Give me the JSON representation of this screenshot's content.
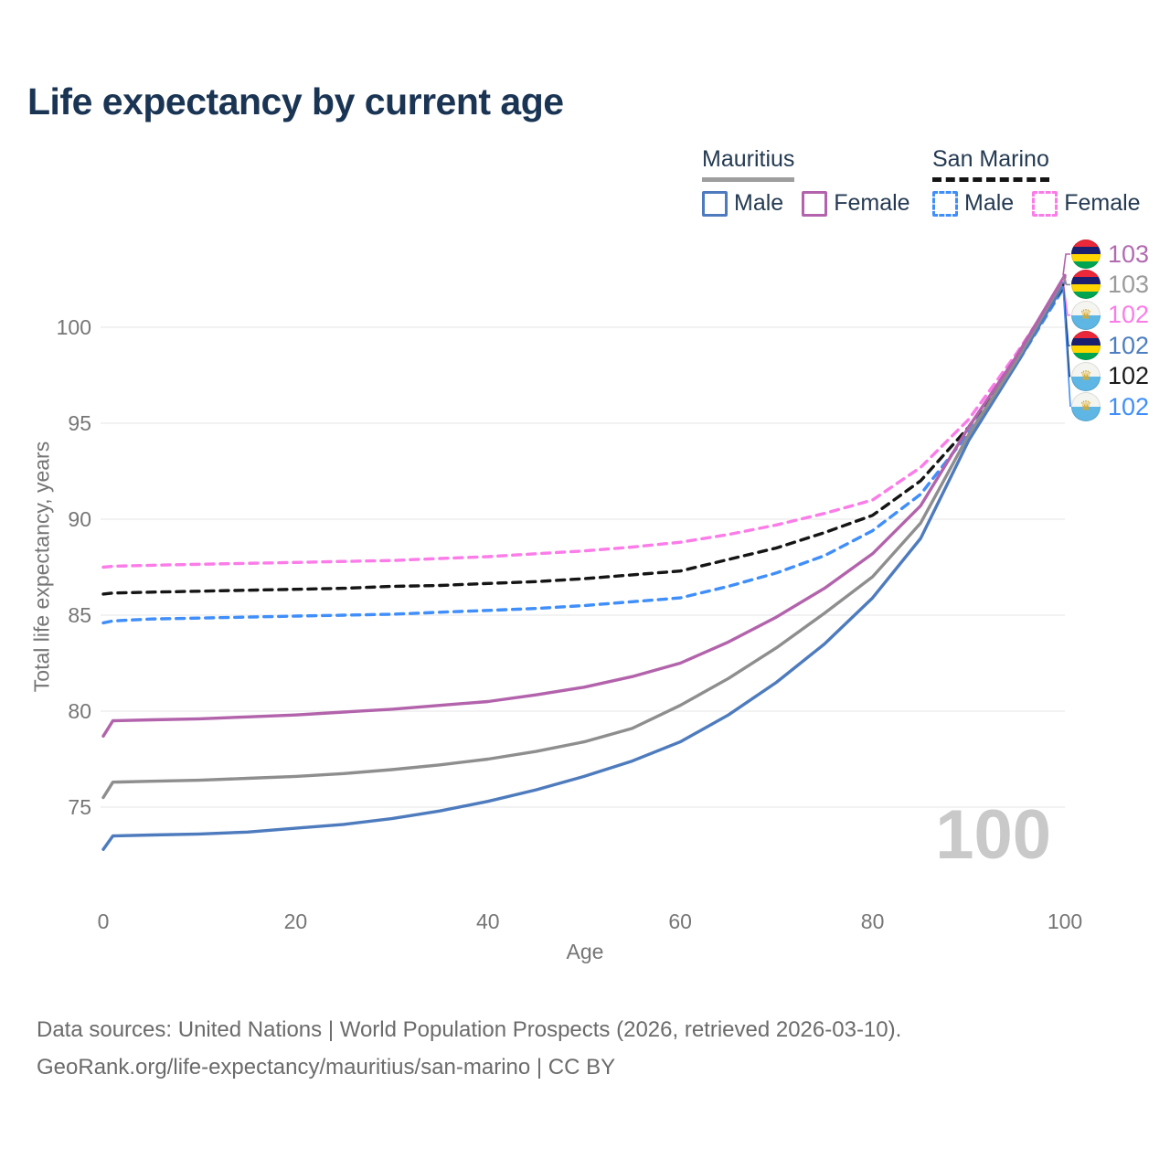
{
  "title": "Life expectancy by current age",
  "watermark": "100",
  "legend": {
    "groups": [
      {
        "name": "Mauritius",
        "line": {
          "color": "#9e9e9e",
          "dashed": false
        },
        "items": [
          {
            "label": "Male",
            "color": "#4d7bbd",
            "dashed": false
          },
          {
            "label": "Female",
            "color": "#b263ab",
            "dashed": false
          }
        ]
      },
      {
        "name": "San Marino",
        "line": {
          "color": "#151515",
          "dashed": true
        },
        "items": [
          {
            "label": "Male",
            "color": "#3f8efa",
            "dashed": true
          },
          {
            "label": "Female",
            "color": "#fb7ce8",
            "dashed": true
          }
        ]
      }
    ]
  },
  "chart_data": {
    "type": "line",
    "title": "Life expectancy by current age",
    "xlabel": "Age",
    "ylabel": "Total life expectancy, years",
    "xlim": [
      0,
      100
    ],
    "ylim": [
      72,
      104
    ],
    "x_ticks": [
      0,
      20,
      40,
      60,
      80,
      100
    ],
    "y_ticks": [
      75,
      80,
      85,
      90,
      95,
      100
    ],
    "grid": "horizontal",
    "legend_position": "top-right",
    "ages": [
      0,
      1,
      5,
      10,
      15,
      20,
      25,
      30,
      35,
      40,
      45,
      50,
      55,
      60,
      65,
      70,
      75,
      80,
      85,
      90,
      95,
      100
    ],
    "series": [
      {
        "id": "san-marino-male",
        "name": "San Marino Male",
        "country": "San Marino",
        "sex": "Male",
        "color": "#3f8efa",
        "dashed": true,
        "values": [
          84.6,
          84.7,
          84.8,
          84.85,
          84.9,
          84.95,
          85.0,
          85.05,
          85.15,
          85.25,
          85.35,
          85.5,
          85.7,
          85.9,
          86.5,
          87.2,
          88.1,
          89.4,
          91.3,
          94.5,
          98.1,
          102.15
        ]
      },
      {
        "id": "san-marino-total",
        "name": "San Marino",
        "country": "San Marino",
        "sex": "Both",
        "color": "#151515",
        "dashed": true,
        "values": [
          86.1,
          86.15,
          86.2,
          86.25,
          86.3,
          86.35,
          86.4,
          86.5,
          86.55,
          86.65,
          86.75,
          86.9,
          87.1,
          87.3,
          87.9,
          88.5,
          89.3,
          90.2,
          92.0,
          94.8,
          98.35,
          102.25
        ]
      },
      {
        "id": "san-marino-female",
        "name": "San Marino Female",
        "country": "San Marino",
        "sex": "Female",
        "color": "#fb7ce8",
        "dashed": true,
        "values": [
          87.5,
          87.55,
          87.6,
          87.65,
          87.7,
          87.75,
          87.8,
          87.85,
          87.95,
          88.05,
          88.2,
          88.35,
          88.55,
          88.8,
          89.2,
          89.7,
          90.3,
          91.0,
          92.7,
          95.2,
          98.65,
          102.45
        ]
      },
      {
        "id": "mauritius-male",
        "name": "Mauritius Male",
        "country": "Mauritius",
        "sex": "Male",
        "color": "#4d7bbd",
        "dashed": false,
        "values": [
          72.8,
          73.5,
          73.55,
          73.6,
          73.7,
          73.9,
          74.1,
          74.4,
          74.8,
          75.3,
          75.9,
          76.6,
          77.4,
          78.4,
          79.8,
          81.5,
          83.5,
          85.9,
          89.0,
          94.1,
          98.1,
          102.35
        ]
      },
      {
        "id": "mauritius-total",
        "name": "Mauritius",
        "country": "Mauritius",
        "sex": "Both",
        "color": "#8e8e8e",
        "dashed": false,
        "values": [
          75.5,
          76.3,
          76.35,
          76.4,
          76.5,
          76.6,
          76.75,
          76.95,
          77.2,
          77.5,
          77.9,
          78.4,
          79.1,
          80.3,
          81.7,
          83.3,
          85.1,
          87.0,
          89.8,
          94.4,
          98.3,
          102.6
        ]
      },
      {
        "id": "mauritius-female",
        "name": "Mauritius Female",
        "country": "Mauritius",
        "sex": "Female",
        "color": "#b263ab",
        "dashed": false,
        "values": [
          78.7,
          79.5,
          79.55,
          79.6,
          79.7,
          79.8,
          79.95,
          80.1,
          80.3,
          80.5,
          80.85,
          81.25,
          81.8,
          82.5,
          83.6,
          84.9,
          86.4,
          88.2,
          90.7,
          94.8,
          98.5,
          102.7
        ]
      }
    ]
  },
  "end_labels": [
    {
      "series": "mauritius-female",
      "flag": "mauritius",
      "value": "103",
      "color": "#b16bb0"
    },
    {
      "series": "mauritius-total",
      "flag": "mauritius",
      "value": "103",
      "color": "#9b9b9b"
    },
    {
      "series": "san-marino-female",
      "flag": "san-marino",
      "value": "102",
      "color": "#fb7ce8"
    },
    {
      "series": "mauritius-male",
      "flag": "mauritius",
      "value": "102",
      "color": "#4d7ec0"
    },
    {
      "series": "san-marino-total",
      "flag": "san-marino",
      "value": "102",
      "color": "#1a1a1a"
    },
    {
      "series": "san-marino-male",
      "flag": "san-marino",
      "value": "102",
      "color": "#3f8efa"
    }
  ],
  "footer": {
    "line1": "Data sources: United Nations | World Population Prospects (2026, retrieved 2026-03-10).",
    "line2": "GeoRank.org/life-expectancy/mauritius/san-marino | CC BY"
  }
}
